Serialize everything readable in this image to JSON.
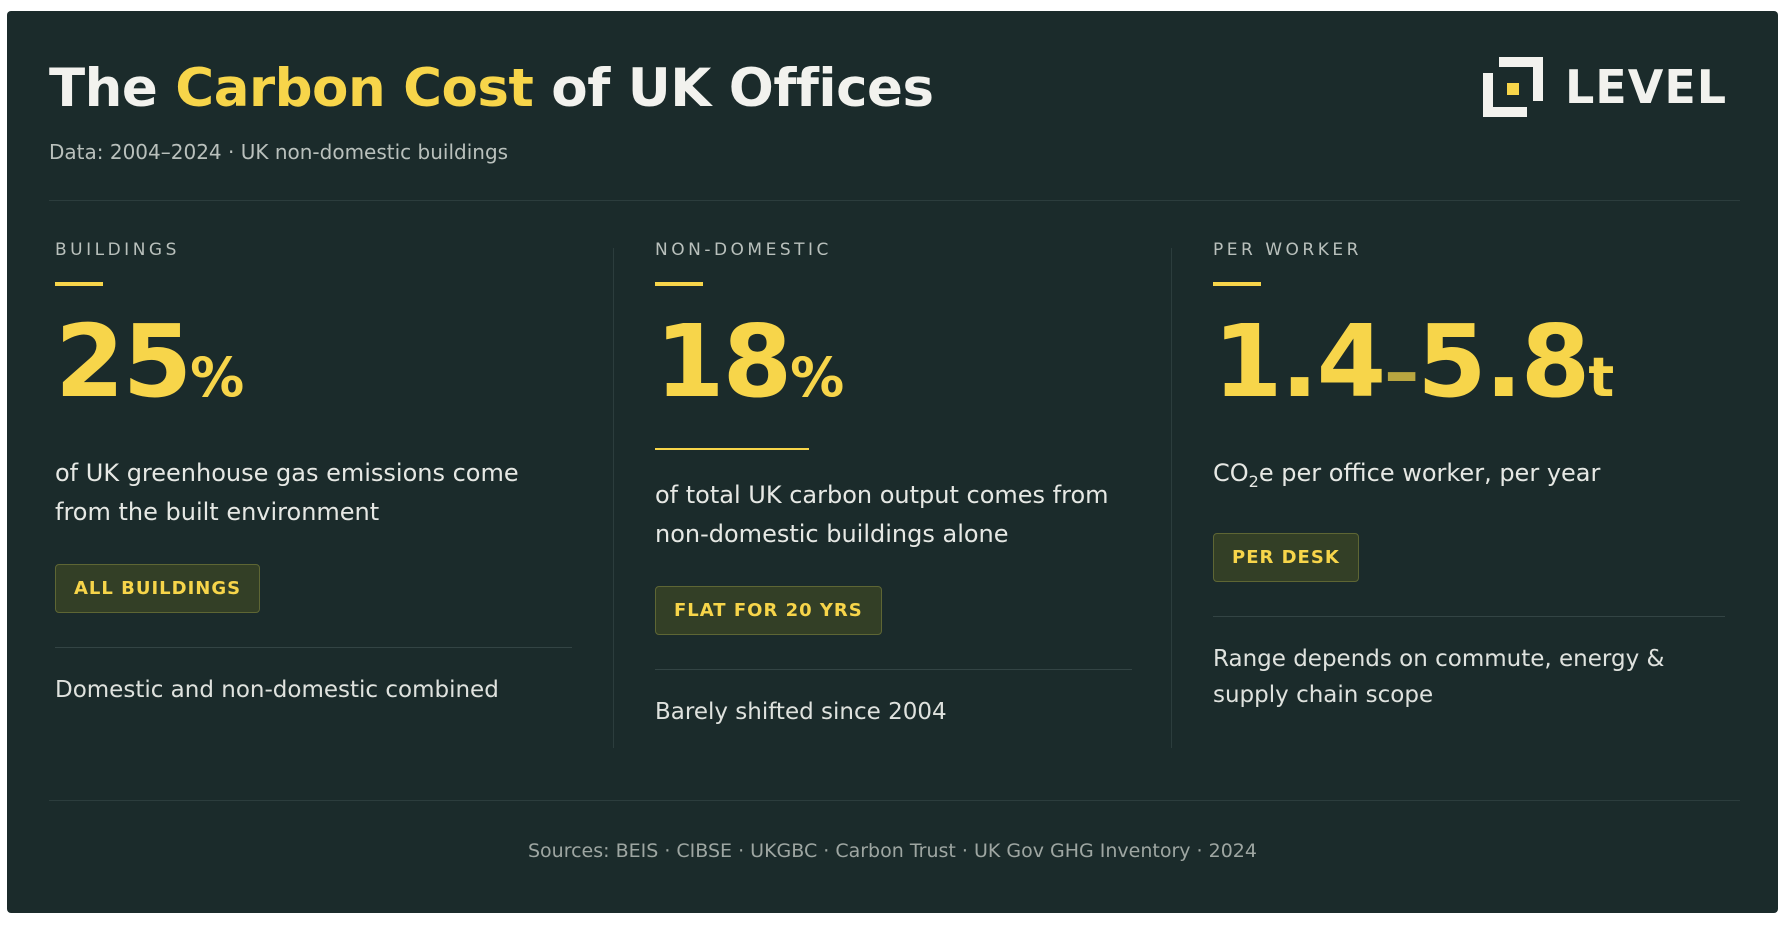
{
  "header": {
    "title_pre": "The ",
    "title_highlight": "Carbon Cost",
    "title_post": " of UK Offices",
    "subtitle": "Data: 2004–2024 · UK non-domestic buildings",
    "logo_text": "LEVEL",
    "logo_icon": "level-logo-icon"
  },
  "colors": {
    "background": "#1b2b2b",
    "accent": "#f7d54a",
    "text": "#f2f2ee"
  },
  "stats": [
    {
      "label": "BUILDINGS",
      "value": "25",
      "unit": "%",
      "description": "of UK greenhouse gas emissions come from the built environment",
      "badge": "ALL BUILDINGS",
      "note": "Domestic and non-domestic combined"
    },
    {
      "label": "NON-DOMESTIC",
      "value": "18",
      "unit": "%",
      "description": "of total UK carbon output comes from non-domestic buildings alone",
      "badge": "FLAT FOR 20 YRS",
      "note": "Barely shifted since 2004"
    },
    {
      "label": "PER WORKER",
      "value_low": "1.4",
      "value_sep": "–",
      "value_high": "5.8",
      "unit": "t",
      "description_pre": "CO",
      "description_sub": "2",
      "description_post": "e per office worker, per year",
      "badge": "PER DESK",
      "note": "Range depends on commute, energy & supply chain scope"
    }
  ],
  "footer": {
    "sources": "Sources: BEIS · CIBSE · UKGBC · Carbon Trust · UK Gov GHG Inventory · 2024"
  }
}
